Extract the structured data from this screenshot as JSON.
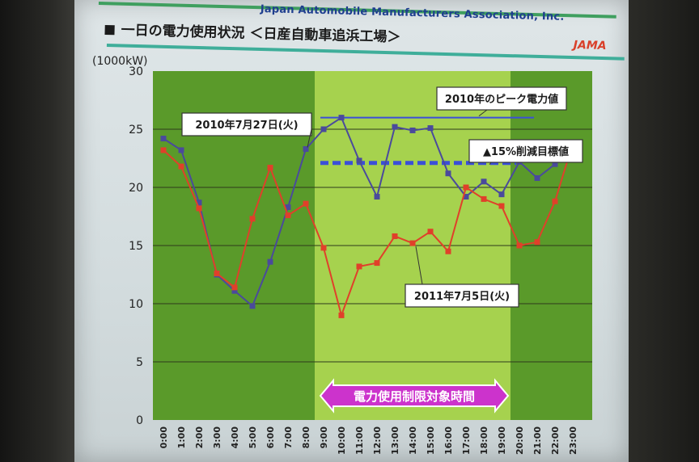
{
  "slide": {
    "org_name": "Japan Automobile Manufacturers Association, Inc.",
    "title": "一日の電力使用状況 ＜日産自動車追浜工場＞",
    "logo": "JAMA"
  },
  "chart_data": {
    "type": "line",
    "title": "一日の電力使用状況 ＜日産自動車追浜工場＞",
    "xlabel": "",
    "ylabel": "(1000kW)",
    "ylim": [
      0,
      30
    ],
    "yticks": [
      0,
      5,
      10,
      15,
      20,
      25,
      30
    ],
    "categories": [
      "0:00",
      "1:00",
      "2:00",
      "3:00",
      "4:00",
      "5:00",
      "6:00",
      "7:00",
      "8:00",
      "9:00",
      "10:00",
      "11:00",
      "12:00",
      "13:00",
      "14:00",
      "15:00",
      "16:00",
      "17:00",
      "18:00",
      "19:00",
      "20:00",
      "21:00",
      "22:00",
      "23:00"
    ],
    "grid": true,
    "series": [
      {
        "name": "2010年7月27日(火)",
        "color": "#4a4a9c",
        "values": [
          24.2,
          23.2,
          18.7,
          12.5,
          11.1,
          9.8,
          13.6,
          18.3,
          23.3,
          25.0,
          26.0,
          22.3,
          19.2,
          25.2,
          24.9,
          25.1,
          21.2,
          19.2,
          20.5,
          19.4,
          22.2,
          20.8,
          22.0,
          23.0
        ]
      },
      {
        "name": "2011年7月5日(火)",
        "color": "#e0402a",
        "values": [
          23.2,
          21.8,
          18.2,
          12.6,
          11.4,
          17.3,
          21.7,
          17.6,
          18.6,
          14.8,
          9.0,
          13.2,
          13.5,
          15.8,
          15.2,
          16.2,
          14.5,
          20.0,
          19.0,
          18.4,
          15.0,
          15.3,
          18.8,
          23.8
        ]
      }
    ],
    "shaded_periods": [
      {
        "start": "0:00",
        "end": "9:00",
        "color": "#5a9a2a"
      },
      {
        "start": "9:00",
        "end": "20:00",
        "color": "#a6d24e"
      },
      {
        "start": "20:00",
        "end": "23:00",
        "color": "#5a9a2a"
      }
    ],
    "reference_lines": [
      {
        "label": "2010年のピーク電力値",
        "value": 26.0,
        "from": "9:00",
        "to": "20:00",
        "color": "#3b4fd8",
        "style": "solid"
      },
      {
        "label": "▲15%削減目標値",
        "value": 22.1,
        "from": "9:00",
        "to": "19:00",
        "color": "#3b4fd8",
        "style": "dashed"
      }
    ],
    "annotations": [
      {
        "text": "2010年7月27日(火)"
      },
      {
        "text": "2011年7月5日(火)"
      },
      {
        "text": "2010年のピーク電力値"
      },
      {
        "text": "▲15%削減目標値"
      },
      {
        "text": "電力使用制限対象時間"
      }
    ],
    "restriction_label": "電力使用制限対象時間"
  }
}
